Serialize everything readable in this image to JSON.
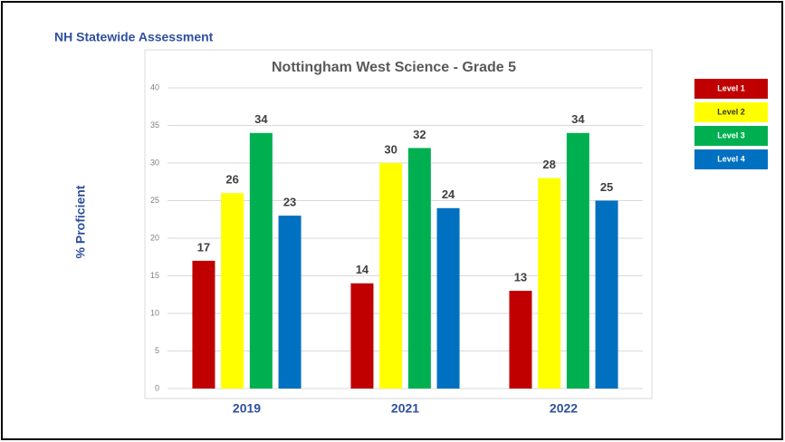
{
  "page_title": "NH Statewide Assessment",
  "chart_data": {
    "type": "bar",
    "title": "Nottingham West Science - Grade 5",
    "y_label": "% Proficient",
    "categories": [
      "2019",
      "2021",
      "2022"
    ],
    "series": [
      {
        "name": "Level 1",
        "color": "#c00000",
        "values": [
          17,
          14,
          13
        ]
      },
      {
        "name": "Level 2",
        "color": "#ffff00",
        "values": [
          26,
          30,
          28
        ]
      },
      {
        "name": "Level 3",
        "color": "#00b050",
        "values": [
          34,
          32,
          34
        ]
      },
      {
        "name": "Level 4",
        "color": "#0070c0",
        "values": [
          23,
          24,
          25
        ]
      }
    ],
    "ylim": [
      0,
      40
    ],
    "yticks": [
      0,
      5,
      10,
      15,
      20,
      25,
      30,
      35,
      40
    ],
    "grid": true,
    "legend": "right"
  }
}
